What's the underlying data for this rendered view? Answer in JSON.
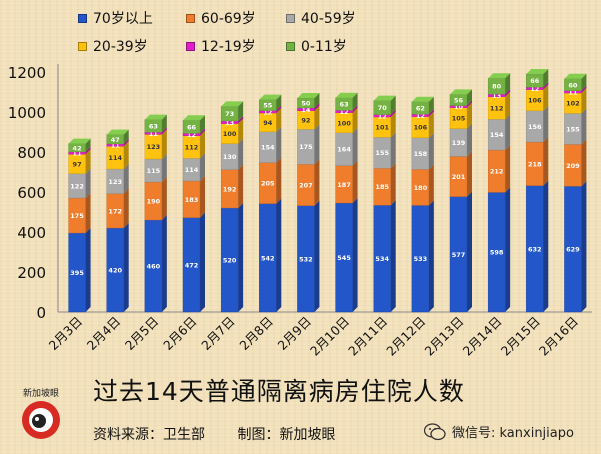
{
  "chart_data": {
    "type": "bar",
    "stacked": true,
    "categories": [
      "2月3日",
      "2月4日",
      "2月5日",
      "2月6日",
      "2月7日",
      "2月8日",
      "2月9日",
      "2月10日",
      "2月11日",
      "2月12日",
      "2月13日",
      "2月14日",
      "2月15日",
      "2月16日"
    ],
    "series": [
      {
        "name": "70岁以上",
        "color": "#2356c8",
        "label_color": "#ffffff",
        "values": [
          395,
          420,
          460,
          472,
          520,
          542,
          532,
          545,
          534,
          533,
          577,
          598,
          632,
          629
        ]
      },
      {
        "name": "60-69岁",
        "color": "#f07d2c",
        "label_color": "#ffffff",
        "values": [
          175,
          172,
          190,
          183,
          192,
          205,
          207,
          187,
          185,
          180,
          201,
          212,
          218,
          209
        ]
      },
      {
        "name": "40-59岁",
        "color": "#a9a9a9",
        "label_color": "#ffffff",
        "values": [
          122,
          123,
          115,
          114,
          130,
          154,
          175,
          164,
          155,
          158,
          139,
          154,
          156,
          155
        ]
      },
      {
        "name": "20-39岁",
        "color": "#ffc20e",
        "label_color": "#333333",
        "values": [
          97,
          114,
          123,
          112,
          100,
          94,
          92,
          100,
          101,
          106,
          105,
          112,
          106,
          102
        ]
      },
      {
        "name": "12-19岁",
        "color": "#e31dc8",
        "label_color": "#ffffff",
        "values": [
          11,
          11,
          11,
          12,
          13,
          12,
          14,
          12,
          12,
          12,
          10,
          13,
          12,
          11
        ]
      },
      {
        "name": "0-11岁",
        "color": "#74b244",
        "label_color": "#ffffff",
        "values": [
          42,
          47,
          63,
          66,
          73,
          55,
          50,
          63,
          70,
          62,
          56,
          80,
          66,
          60
        ]
      }
    ],
    "ylim": [
      0,
      1200
    ],
    "yticks": [
      0,
      200,
      400,
      600,
      800,
      1000,
      1200
    ],
    "grid": false,
    "legend": "top-left",
    "title": "过去14天普通隔离病房住院人数"
  },
  "footer": {
    "source": "资料来源：卫生部",
    "maker": "制图：新加坡眼",
    "logo_text": "新加坡眼",
    "wechat": "微信号: kanxinjiapo"
  },
  "colors": {
    "background": "#f3e3bf"
  }
}
